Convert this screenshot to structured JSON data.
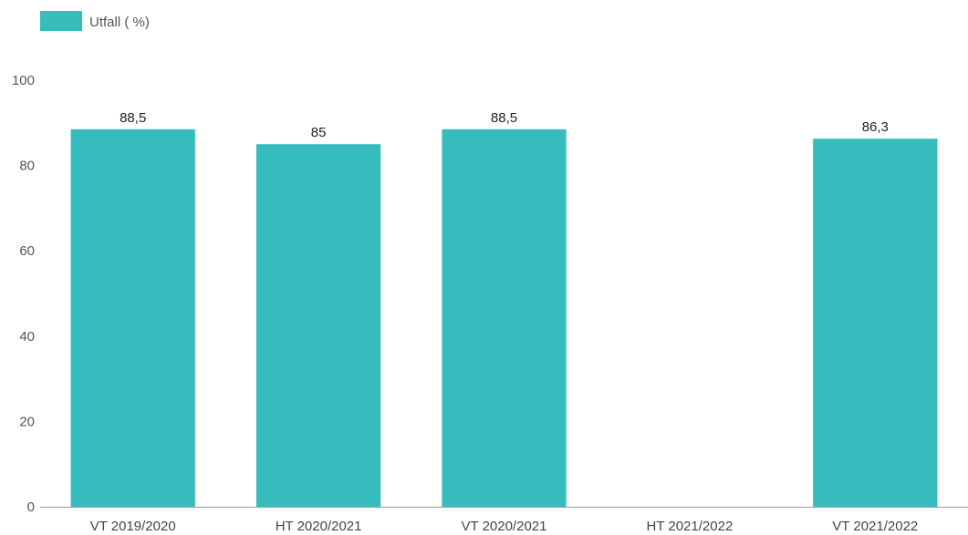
{
  "chart_data": {
    "type": "bar",
    "categories": [
      "VT 2019/2020",
      "HT 2020/2021",
      "VT 2020/2021",
      "HT 2021/2022",
      "VT 2021/2022"
    ],
    "series": [
      {
        "name": "Utfall ( %)",
        "values": [
          88.5,
          85,
          88.5,
          null,
          86.3
        ],
        "labels": [
          "88,5",
          "85",
          "88,5",
          "",
          "86,3"
        ]
      }
    ],
    "ylim": [
      0,
      100
    ],
    "yticks": [
      0,
      20,
      40,
      60,
      80,
      100
    ],
    "grid": false,
    "legend": "top-left",
    "colors": {
      "bar": "#36BCBC",
      "axis": "#999999"
    }
  }
}
